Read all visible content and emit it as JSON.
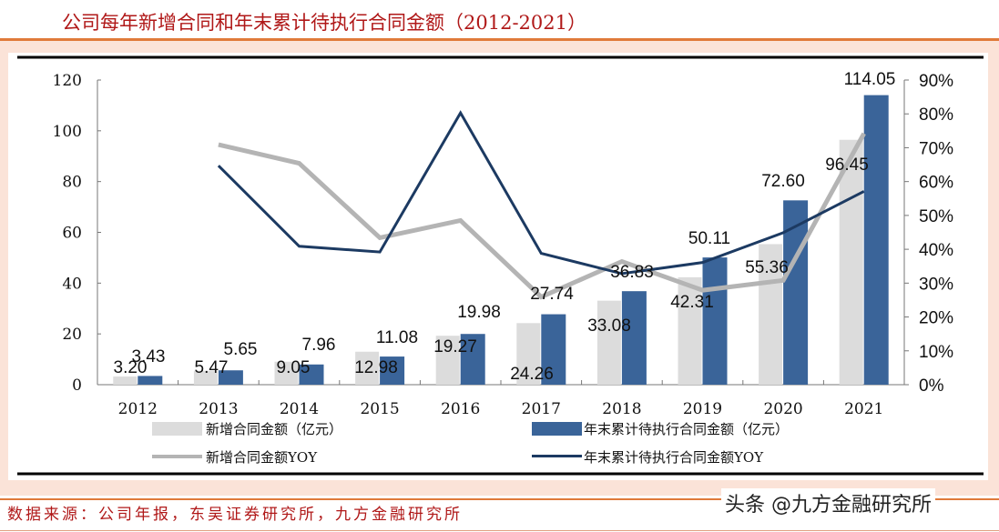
{
  "title": "公司每年新增合同和年末累计待执行合同金额（2012-2021）",
  "source": "数据来源：公司年报，东吴证券研究所，九方金融研究所",
  "watermark": "头条 @九方金融研究所",
  "chart_data": {
    "type": "bar+line",
    "categories": [
      "2012",
      "2013",
      "2014",
      "2015",
      "2016",
      "2017",
      "2018",
      "2019",
      "2020",
      "2021"
    ],
    "left_axis": {
      "range": [
        0,
        120
      ],
      "ticks": [
        "0",
        "20",
        "40",
        "60",
        "80",
        "100",
        "120"
      ]
    },
    "right_axis": {
      "range": [
        0,
        90
      ],
      "ticks": [
        "0%",
        "10%",
        "20%",
        "30%",
        "40%",
        "50%",
        "60%",
        "70%",
        "80%",
        "90%"
      ]
    },
    "series": [
      {
        "name": "新增合同金额（亿元）",
        "type": "bar",
        "axis": "left",
        "color": "#dcdcdc",
        "values": [
          3.2,
          5.47,
          9.05,
          12.98,
          19.27,
          24.26,
          33.08,
          42.31,
          55.36,
          96.45
        ],
        "labels": [
          "3.20",
          "5.47",
          "9.05",
          "12.98",
          "19.27",
          "24.26",
          "33.08",
          "42.31",
          "55.36",
          "96.45"
        ]
      },
      {
        "name": "年末累计待执行合同金额（亿元）",
        "type": "bar",
        "axis": "left",
        "color": "#3a6499",
        "values": [
          3.43,
          5.65,
          7.96,
          11.08,
          19.98,
          27.74,
          36.83,
          50.11,
          72.6,
          114.05
        ],
        "labels": [
          "3.43",
          "5.65",
          "7.96",
          "11.08",
          "19.98",
          "27.74",
          "36.83",
          "50.11",
          "72.60",
          "114.05"
        ]
      },
      {
        "name": "新增合同金额YOY",
        "type": "line",
        "axis": "right",
        "color": "#b4b4b4",
        "values": [
          null,
          70.9,
          65.4,
          43.4,
          48.5,
          25.9,
          36.4,
          27.9,
          30.8,
          74.2
        ]
      },
      {
        "name": "年末累计待执行合同金额YOY",
        "type": "line",
        "axis": "right",
        "color": "#1c3a62",
        "values": [
          null,
          64.7,
          40.9,
          39.2,
          80.3,
          38.8,
          32.8,
          36.1,
          44.9,
          57.1
        ]
      }
    ],
    "legend": "bottom",
    "grid": false
  }
}
